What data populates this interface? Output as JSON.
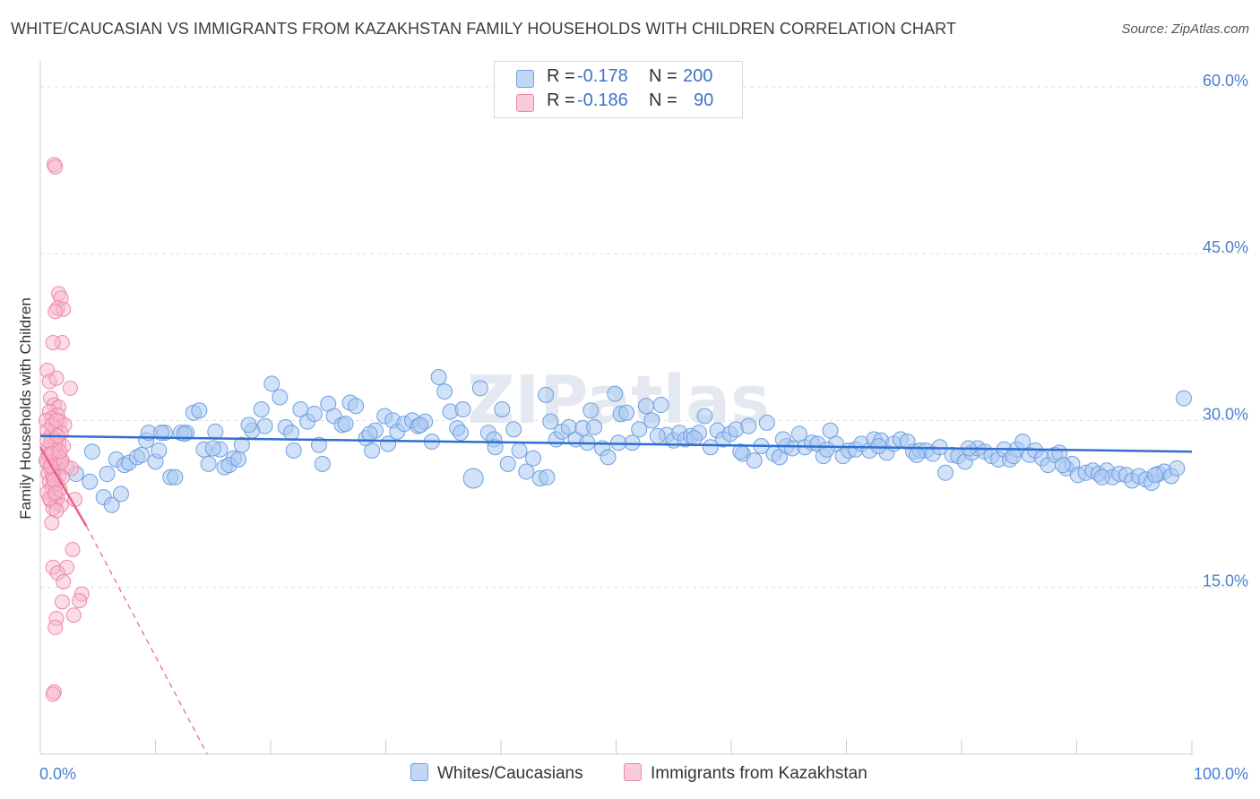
{
  "title": "WHITE/CAUCASIAN VS IMMIGRANTS FROM KAZAKHSTAN FAMILY HOUSEHOLDS WITH CHILDREN CORRELATION CHART",
  "source": "Source: ZipAtlas.com",
  "watermark": "ZIPatlas",
  "legend_stats": [
    {
      "r_label": "R =",
      "r_value": "-0.178",
      "n_label": "N =",
      "n_value": "200"
    },
    {
      "r_label": "R =",
      "r_value": "-0.186",
      "n_label": "N =",
      "n_value": "90"
    }
  ],
  "chart_data": {
    "type": "scatter",
    "ylabel": "Family Households with Children",
    "xlabel": "",
    "x_ticks": [
      "0.0%",
      "100.0%"
    ],
    "y_ticks": [
      "15.0%",
      "30.0%",
      "45.0%",
      "60.0%"
    ],
    "xlim": [
      0,
      100
    ],
    "ylim": [
      0,
      62
    ],
    "grid": true,
    "legend_position": "bottom-center",
    "colors": {
      "blue_fill": "#a9c8f2",
      "blue_stroke": "#6f9fe0",
      "blue_line": "#2f6fd1",
      "pink_fill": "#f7b7cb",
      "pink_stroke": "#ee88a9",
      "pink_line": "#e8608c"
    },
    "series": [
      {
        "name": "Whites/Caucasians",
        "color": "blue",
        "trend": {
          "x0": 0,
          "y0": 28.6,
          "x1": 100,
          "y1": 27.2,
          "style": "solid"
        },
        "points": [
          [
            3.1,
            25.2
          ],
          [
            4.3,
            24.5
          ],
          [
            4.5,
            27.2
          ],
          [
            5.5,
            23.1
          ],
          [
            5.8,
            25.2
          ],
          [
            6.2,
            22.4
          ],
          [
            6.6,
            26.5
          ],
          [
            7.0,
            23.4
          ],
          [
            7.3,
            26.0
          ],
          [
            7.7,
            26.2
          ],
          [
            8.4,
            26.7
          ],
          [
            8.8,
            26.9
          ],
          [
            9.2,
            28.2
          ],
          [
            9.4,
            28.9
          ],
          [
            10.0,
            26.3
          ],
          [
            10.3,
            27.3
          ],
          [
            10.8,
            28.9
          ],
          [
            11.3,
            24.9
          ],
          [
            11.7,
            24.9
          ],
          [
            12.2,
            28.9
          ],
          [
            12.7,
            28.9
          ],
          [
            13.3,
            30.7
          ],
          [
            13.8,
            30.9
          ],
          [
            14.2,
            27.4
          ],
          [
            14.6,
            26.1
          ],
          [
            15.2,
            29.0
          ],
          [
            15.6,
            27.4
          ],
          [
            16.0,
            25.8
          ],
          [
            16.8,
            26.6
          ],
          [
            16.4,
            26.0
          ],
          [
            17.5,
            27.8
          ],
          [
            18.4,
            29.1
          ],
          [
            18.1,
            29.6
          ],
          [
            19.2,
            31.0
          ],
          [
            20.1,
            33.3
          ],
          [
            20.8,
            32.1
          ],
          [
            21.3,
            29.4
          ],
          [
            22.0,
            27.3
          ],
          [
            22.6,
            31.0
          ],
          [
            23.2,
            29.9
          ],
          [
            23.8,
            30.6
          ],
          [
            24.5,
            26.1
          ],
          [
            25.0,
            31.5
          ],
          [
            25.5,
            30.4
          ],
          [
            26.2,
            29.6
          ],
          [
            26.9,
            31.6
          ],
          [
            27.4,
            31.3
          ],
          [
            28.3,
            28.4
          ],
          [
            29.1,
            29.1
          ],
          [
            28.8,
            27.3
          ],
          [
            29.9,
            30.4
          ],
          [
            30.6,
            30.0
          ],
          [
            31.0,
            29.0
          ],
          [
            31.6,
            29.7
          ],
          [
            32.3,
            30.0
          ],
          [
            32.8,
            29.5
          ],
          [
            33.4,
            29.9
          ],
          [
            34.0,
            28.1
          ],
          [
            34.6,
            33.9
          ],
          [
            35.1,
            32.6
          ],
          [
            35.6,
            30.8
          ],
          [
            36.2,
            29.3
          ],
          [
            36.7,
            31.0
          ],
          [
            37.6,
            24.8
          ],
          [
            38.2,
            32.9
          ],
          [
            38.9,
            28.9
          ],
          [
            39.4,
            28.3
          ],
          [
            40.1,
            31.0
          ],
          [
            40.6,
            26.1
          ],
          [
            41.1,
            29.2
          ],
          [
            41.6,
            27.3
          ],
          [
            42.2,
            25.4
          ],
          [
            42.8,
            26.6
          ],
          [
            43.4,
            24.8
          ],
          [
            43.9,
            32.3
          ],
          [
            44.3,
            29.9
          ],
          [
            44.8,
            28.3
          ],
          [
            45.3,
            29.0
          ],
          [
            45.9,
            29.4
          ],
          [
            46.5,
            28.3
          ],
          [
            47.1,
            29.3
          ],
          [
            47.8,
            30.9
          ],
          [
            48.1,
            29.4
          ],
          [
            48.8,
            27.5
          ],
          [
            49.3,
            26.7
          ],
          [
            49.9,
            32.4
          ],
          [
            50.4,
            30.6
          ],
          [
            50.9,
            30.7
          ],
          [
            51.4,
            28.0
          ],
          [
            52.0,
            29.2
          ],
          [
            52.6,
            31.3
          ],
          [
            53.1,
            30.0
          ],
          [
            53.9,
            31.4
          ],
          [
            54.4,
            28.7
          ],
          [
            55.0,
            28.2
          ],
          [
            55.5,
            28.9
          ],
          [
            56.0,
            28.3
          ],
          [
            56.5,
            28.6
          ],
          [
            57.2,
            28.9
          ],
          [
            57.7,
            30.4
          ],
          [
            58.2,
            27.6
          ],
          [
            58.8,
            29.1
          ],
          [
            59.3,
            28.3
          ],
          [
            59.9,
            28.8
          ],
          [
            60.4,
            29.2
          ],
          [
            61.0,
            27.0
          ],
          [
            61.5,
            29.5
          ],
          [
            62.0,
            26.4
          ],
          [
            62.6,
            27.7
          ],
          [
            63.1,
            29.8
          ],
          [
            63.7,
            27.0
          ],
          [
            64.2,
            26.7
          ],
          [
            64.8,
            27.7
          ],
          [
            65.3,
            27.5
          ],
          [
            65.9,
            28.8
          ],
          [
            66.4,
            27.6
          ],
          [
            67.0,
            28.0
          ],
          [
            67.5,
            27.9
          ],
          [
            68.0,
            26.8
          ],
          [
            68.6,
            29.1
          ],
          [
            69.1,
            27.9
          ],
          [
            69.7,
            26.8
          ],
          [
            70.2,
            27.3
          ],
          [
            70.8,
            27.4
          ],
          [
            71.3,
            27.9
          ],
          [
            72.0,
            27.3
          ],
          [
            72.4,
            28.3
          ],
          [
            73.0,
            28.2
          ],
          [
            73.5,
            27.1
          ],
          [
            74.1,
            27.9
          ],
          [
            74.7,
            28.3
          ],
          [
            75.3,
            28.1
          ],
          [
            75.8,
            27.2
          ],
          [
            76.4,
            27.3
          ],
          [
            76.9,
            27.3
          ],
          [
            77.5,
            27.0
          ],
          [
            78.1,
            27.6
          ],
          [
            78.6,
            25.3
          ],
          [
            79.2,
            26.9
          ],
          [
            79.7,
            26.8
          ],
          [
            80.3,
            26.3
          ],
          [
            80.9,
            27.1
          ],
          [
            81.4,
            27.5
          ],
          [
            82.0,
            27.2
          ],
          [
            82.6,
            26.8
          ],
          [
            83.2,
            26.5
          ],
          [
            83.7,
            27.4
          ],
          [
            84.2,
            26.5
          ],
          [
            84.8,
            27.4
          ],
          [
            85.3,
            28.1
          ],
          [
            85.9,
            26.9
          ],
          [
            86.4,
            27.3
          ],
          [
            87.0,
            26.6
          ],
          [
            87.5,
            26.0
          ],
          [
            88.1,
            26.9
          ],
          [
            88.5,
            27.1
          ],
          [
            89.1,
            25.7
          ],
          [
            89.6,
            26.1
          ],
          [
            90.1,
            25.1
          ],
          [
            90.8,
            25.3
          ],
          [
            91.4,
            25.5
          ],
          [
            91.9,
            25.2
          ],
          [
            92.6,
            25.5
          ],
          [
            93.1,
            24.9
          ],
          [
            93.7,
            25.2
          ],
          [
            94.3,
            25.1
          ],
          [
            94.8,
            24.6
          ],
          [
            95.4,
            25.0
          ],
          [
            96.0,
            24.7
          ],
          [
            96.5,
            24.4
          ],
          [
            97.1,
            25.2
          ],
          [
            97.6,
            25.4
          ],
          [
            98.2,
            25.0
          ],
          [
            98.7,
            25.7
          ],
          [
            99.3,
            32.0
          ],
          [
            10.5,
            28.9
          ],
          [
            12.5,
            28.8
          ],
          [
            15.0,
            27.5
          ],
          [
            19.5,
            29.5
          ],
          [
            21.8,
            28.9
          ],
          [
            26.5,
            29.7
          ],
          [
            30.2,
            27.9
          ],
          [
            33.0,
            29.6
          ],
          [
            36.5,
            28.9
          ],
          [
            39.5,
            27.6
          ],
          [
            44.0,
            24.9
          ],
          [
            47.5,
            28.0
          ],
          [
            50.2,
            28.0
          ],
          [
            53.6,
            28.6
          ],
          [
            56.8,
            28.4
          ],
          [
            60.8,
            27.2
          ],
          [
            64.5,
            28.3
          ],
          [
            68.3,
            27.4
          ],
          [
            72.8,
            27.7
          ],
          [
            76.1,
            26.9
          ],
          [
            80.6,
            27.5
          ],
          [
            84.5,
            26.8
          ],
          [
            88.8,
            26.0
          ],
          [
            92.2,
            24.9
          ],
          [
            96.8,
            25.1
          ],
          [
            17.2,
            26.5
          ],
          [
            24.2,
            27.8
          ],
          [
            28.6,
            28.8
          ]
        ]
      },
      {
        "name": "Immigrants from Kazakhstan",
        "color": "pink",
        "trend": {
          "x0": 0,
          "y0": 27.6,
          "x1": 4.0,
          "y1": 20.5,
          "style": "solid",
          "ext_x1": 14.5,
          "ext_y1": 0.0
        },
        "points": [
          [
            1.2,
            53.0
          ],
          [
            1.3,
            52.8
          ],
          [
            1.6,
            41.4
          ],
          [
            1.8,
            41.0
          ],
          [
            1.5,
            40.1
          ],
          [
            2.0,
            40.0
          ],
          [
            1.3,
            39.8
          ],
          [
            1.9,
            37.0
          ],
          [
            1.1,
            37.0
          ],
          [
            0.6,
            34.5
          ],
          [
            0.8,
            33.5
          ],
          [
            1.4,
            33.8
          ],
          [
            2.6,
            32.9
          ],
          [
            0.9,
            32.0
          ],
          [
            1.2,
            31.4
          ],
          [
            1.6,
            31.2
          ],
          [
            0.8,
            30.8
          ],
          [
            1.5,
            30.5
          ],
          [
            1.0,
            30.2
          ],
          [
            0.5,
            30.0
          ],
          [
            1.7,
            29.9
          ],
          [
            2.1,
            29.6
          ],
          [
            1.3,
            29.3
          ],
          [
            0.6,
            29.1
          ],
          [
            1.8,
            28.9
          ],
          [
            0.9,
            28.6
          ],
          [
            1.2,
            28.3
          ],
          [
            1.6,
            28.0
          ],
          [
            2.0,
            27.7
          ],
          [
            0.7,
            27.5
          ],
          [
            1.1,
            27.3
          ],
          [
            1.5,
            27.0
          ],
          [
            0.8,
            26.8
          ],
          [
            1.3,
            26.6
          ],
          [
            1.9,
            26.4
          ],
          [
            0.6,
            26.2
          ],
          [
            1.0,
            26.0
          ],
          [
            1.4,
            25.8
          ],
          [
            2.3,
            25.8
          ],
          [
            0.9,
            25.6
          ],
          [
            1.2,
            25.4
          ],
          [
            2.7,
            25.7
          ],
          [
            0.7,
            25.2
          ],
          [
            1.6,
            25.0
          ],
          [
            1.1,
            24.8
          ],
          [
            0.8,
            24.5
          ],
          [
            1.4,
            24.3
          ],
          [
            1.0,
            24.0
          ],
          [
            1.7,
            23.8
          ],
          [
            0.6,
            23.5
          ],
          [
            1.2,
            23.2
          ],
          [
            1.5,
            23.0
          ],
          [
            0.9,
            22.8
          ],
          [
            1.3,
            22.6
          ],
          [
            3.0,
            22.9
          ],
          [
            1.8,
            22.4
          ],
          [
            1.1,
            22.1
          ],
          [
            1.4,
            21.9
          ],
          [
            1.0,
            20.8
          ],
          [
            2.8,
            18.4
          ],
          [
            1.1,
            16.8
          ],
          [
            2.3,
            16.8
          ],
          [
            1.5,
            16.3
          ],
          [
            2.0,
            15.5
          ],
          [
            3.6,
            14.4
          ],
          [
            1.9,
            13.7
          ],
          [
            3.4,
            13.8
          ],
          [
            2.9,
            12.5
          ],
          [
            1.4,
            12.2
          ],
          [
            1.3,
            11.4
          ],
          [
            1.2,
            5.6
          ],
          [
            1.1,
            5.4
          ],
          [
            0.9,
            28.0
          ],
          [
            1.3,
            27.9
          ],
          [
            0.7,
            26.9
          ],
          [
            1.6,
            26.7
          ],
          [
            1.0,
            29.6
          ],
          [
            1.9,
            24.9
          ],
          [
            1.4,
            30.0
          ],
          [
            0.5,
            26.4
          ],
          [
            1.1,
            25.1
          ],
          [
            1.8,
            26.2
          ],
          [
            0.8,
            23.0
          ],
          [
            1.2,
            24.6
          ],
          [
            0.6,
            28.2
          ],
          [
            1.5,
            28.6
          ],
          [
            1.0,
            27.0
          ],
          [
            1.7,
            27.2
          ],
          [
            0.9,
            25.9
          ],
          [
            1.3,
            23.5
          ]
        ]
      }
    ]
  }
}
